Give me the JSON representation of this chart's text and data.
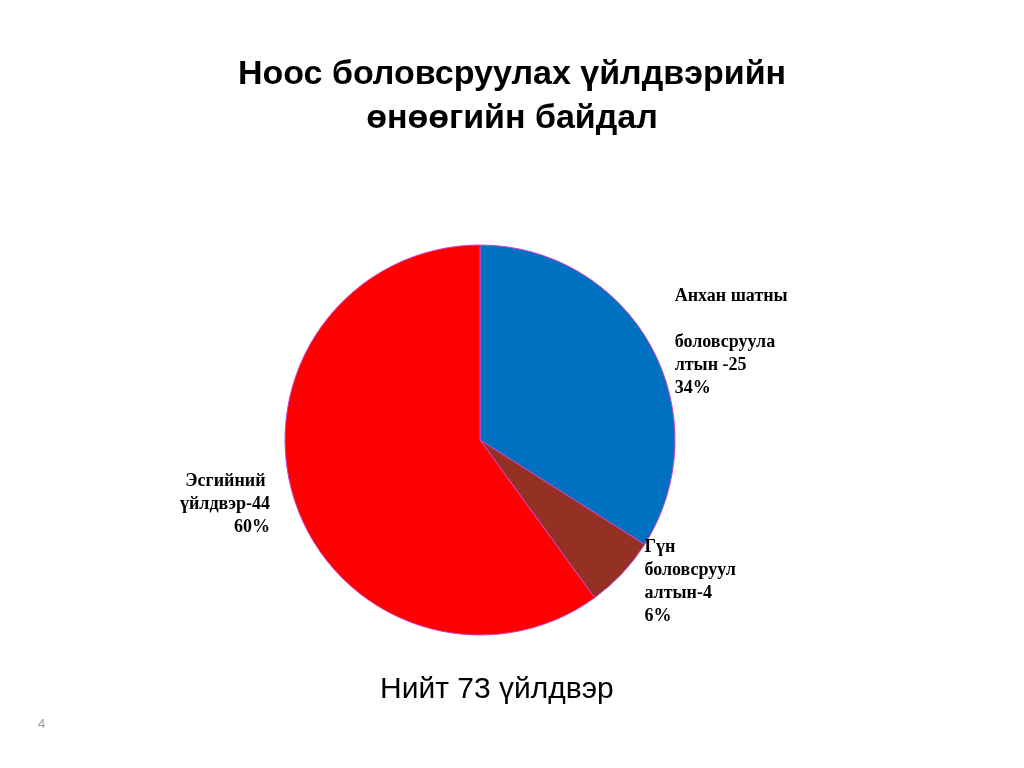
{
  "chart_data": {
    "type": "pie",
    "title": "Ноос боловсруулах үйлдвэрийн\nөнөөгийн байдал",
    "categories": [
      "Анхан шатны боловсруулалтын -25",
      "Гүн боловсруулалтын-4",
      "Эсгийний үйлдвэр-44"
    ],
    "values": [
      34,
      6,
      60
    ],
    "value_labels": [
      "34%",
      "6%",
      "60%"
    ],
    "colors": [
      "#0070c0",
      "#953024",
      "#ff0000"
    ],
    "legend": false,
    "annotations": [
      "Нийт 73 үйлдвэр",
      "4"
    ]
  }
}
